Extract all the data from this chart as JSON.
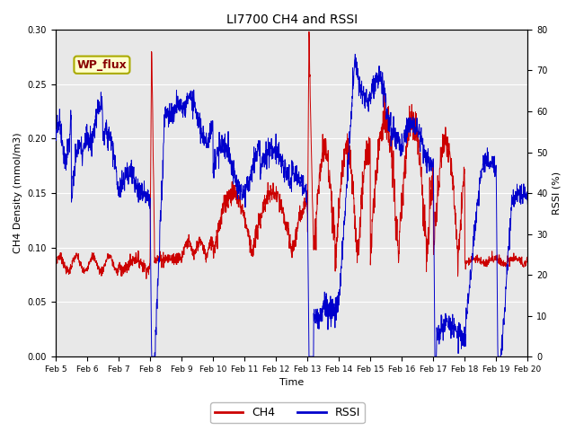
{
  "title": "LI7700 CH4 and RSSI",
  "xlabel": "Time",
  "ylabel_left": "CH4 Density (mmol/m3)",
  "ylabel_right": "RSSI (%)",
  "ylim_left": [
    0.0,
    0.3
  ],
  "ylim_right": [
    0,
    80
  ],
  "yticks_left": [
    0.0,
    0.05,
    0.1,
    0.15,
    0.2,
    0.25,
    0.3
  ],
  "yticks_right": [
    0,
    10,
    20,
    30,
    40,
    50,
    60,
    70,
    80
  ],
  "xtick_labels": [
    "Feb 5",
    "Feb 6",
    "Feb 7",
    "Feb 8",
    "Feb 9",
    "Feb 10",
    "Feb 11",
    "Feb 12",
    "Feb 13",
    "Feb 14",
    "Feb 15",
    "Feb 16",
    "Feb 17",
    "Feb 18",
    "Feb 19",
    "Feb 20"
  ],
  "ch4_color": "#cc0000",
  "rssi_color": "#0000cc",
  "bg_color": "#e8e8e8",
  "annotation_text": "WP_flux",
  "annotation_bg": "#ffffcc",
  "annotation_edge": "#aaaa00",
  "fig_bg": "#ffffff"
}
